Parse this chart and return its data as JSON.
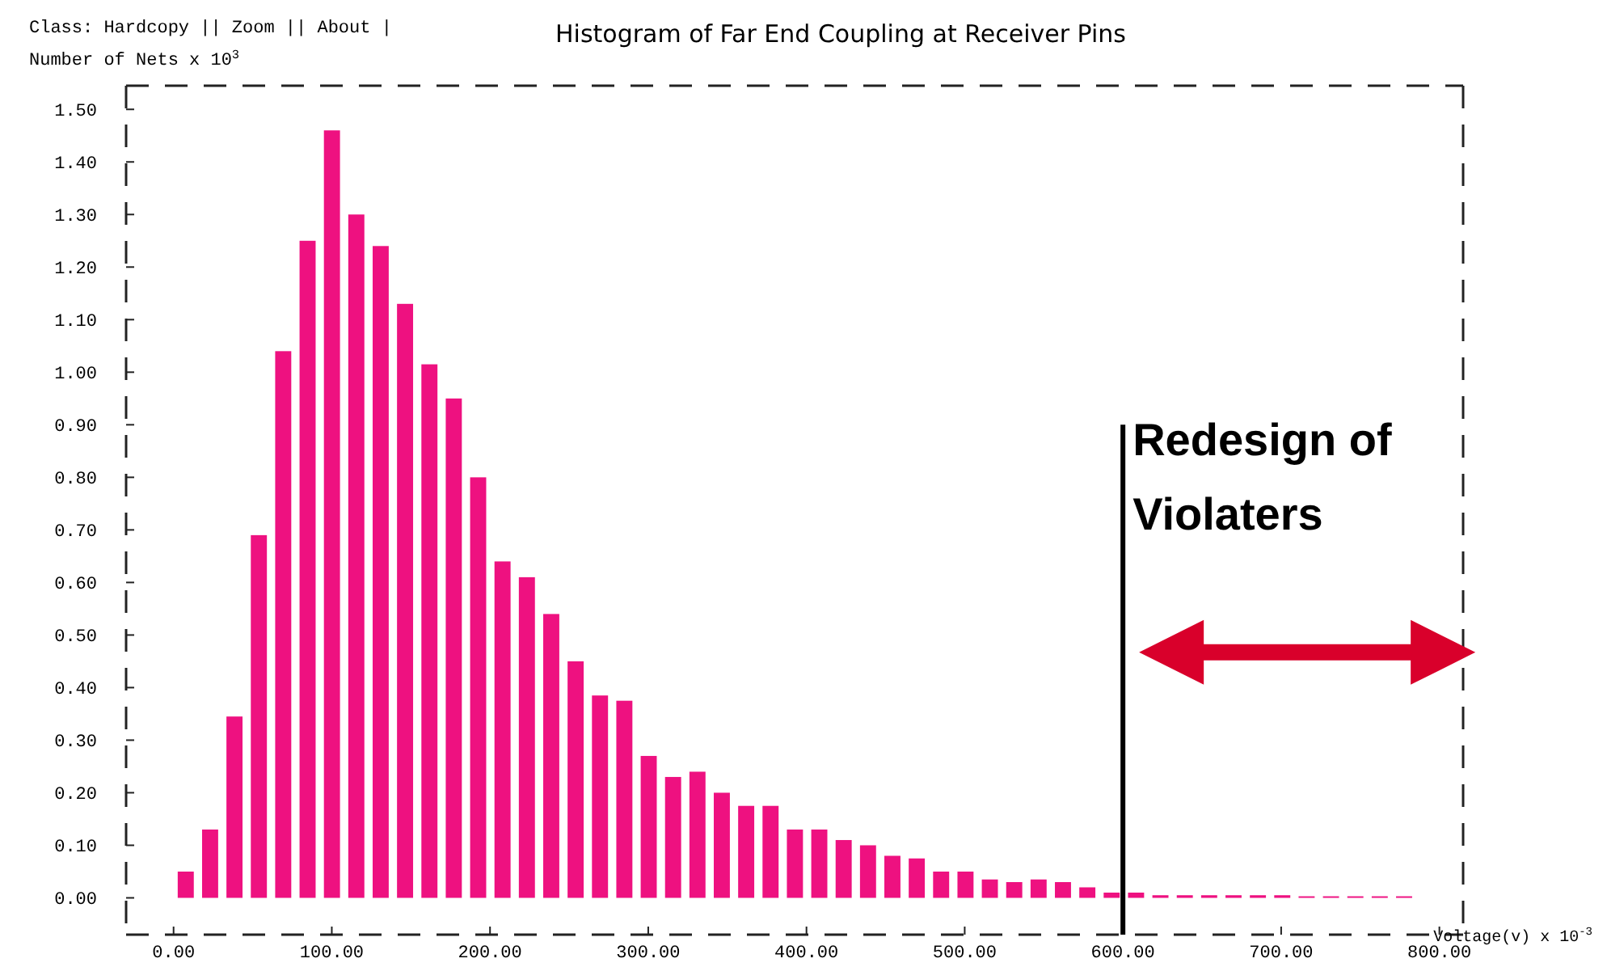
{
  "chart_data": {
    "type": "histogram",
    "title": "Histogram of Far End Coupling at Receiver Pins",
    "xlabel": "Voltage(v) x 10$^{-3}$",
    "ylabel": "Number of Nets x 10$^{3}$",
    "annotations": [
      "Class: Hardcopy || Zoom || About |",
      {
        "text": "Redesign of Violaters",
        "x": 600,
        "y": 0.75
      }
    ],
    "bins": [
      0,
      15.4,
      30.8,
      46.2,
      61.6,
      77,
      92.4,
      107.8,
      123.2,
      138.6,
      154,
      169.4,
      184.8,
      200.2,
      215.6,
      231,
      246.4,
      261.8,
      277.2,
      292.6,
      308,
      323.4,
      338.8,
      354.2,
      369.6,
      385,
      400.4,
      415.8,
      431.2,
      446.6,
      462,
      477.4,
      492.8,
      508.2,
      523.6,
      539,
      554.4,
      569.8,
      585.2,
      600.6,
      616,
      631.4,
      646.8,
      662.2,
      677.6,
      693,
      708.4,
      723.8,
      739.2,
      754.6,
      770,
      785.4
    ],
    "values": [
      0.05,
      0.13,
      0.345,
      0.69,
      1.04,
      1.25,
      1.46,
      1.3,
      1.24,
      1.13,
      1.015,
      0.95,
      0.8,
      0.64,
      0.61,
      0.54,
      0.45,
      0.385,
      0.375,
      0.27,
      0.23,
      0.24,
      0.2,
      0.175,
      0.175,
      0.13,
      0.13,
      0.11,
      0.1,
      0.08,
      0.075,
      0.05,
      0.05,
      0.035,
      0.03,
      0.035,
      0.03,
      0.02,
      0.01,
      0.01,
      0.005,
      0.005,
      0.005,
      0.005,
      0.005,
      0.005,
      0.003,
      0.003,
      0.003,
      0.003,
      0.003
    ],
    "color": "#ee1180",
    "xlim": [
      -30,
      815
    ],
    "ylim": [
      -0.07,
      1.545
    ],
    "xticks": [
      {
        "value": 0,
        "label": "0.00"
      },
      {
        "value": 100,
        "label": "100.00"
      },
      {
        "value": 200,
        "label": "200.00"
      },
      {
        "value": 300,
        "label": "300.00"
      },
      {
        "value": 400,
        "label": "400.00"
      },
      {
        "value": 500,
        "label": "500.00"
      },
      {
        "value": 600,
        "label": "600.00"
      },
      {
        "value": 700,
        "label": "700.00"
      },
      {
        "value": 800,
        "label": "800.00"
      }
    ],
    "yticks": [
      {
        "value": 0,
        "label": "0.00"
      },
      {
        "value": 0.1,
        "label": "0.10"
      },
      {
        "value": 0.2,
        "label": "0.20"
      },
      {
        "value": 0.3,
        "label": "0.30"
      },
      {
        "value": 0.4,
        "label": "0.40"
      },
      {
        "value": 0.5,
        "label": "0.50"
      },
      {
        "value": 0.6,
        "label": "0.60"
      },
      {
        "value": 0.7,
        "label": "0.70"
      },
      {
        "value": 0.8,
        "label": "0.80"
      },
      {
        "value": 0.9,
        "label": "0.90"
      },
      {
        "value": 1,
        "label": "1.00"
      },
      {
        "value": 1.1,
        "label": "1.10"
      },
      {
        "value": 1.2,
        "label": "1.20"
      },
      {
        "value": 1.3,
        "label": "1.30"
      },
      {
        "value": 1.4,
        "label": "1.40"
      },
      {
        "value": 1.5,
        "label": "1.50"
      }
    ],
    "ref_lines": [
      {
        "axis": "x",
        "value": 600,
        "color": "#000000"
      }
    ],
    "grid": false
  }
}
